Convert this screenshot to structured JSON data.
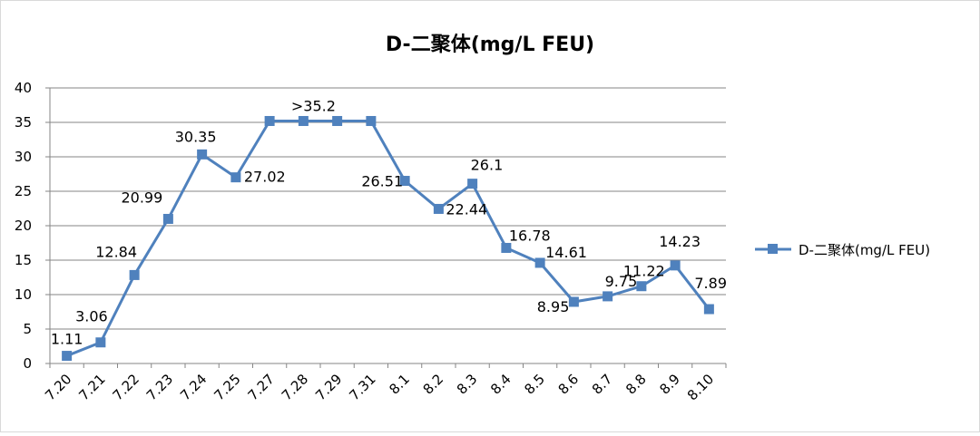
{
  "chart_data": {
    "type": "line",
    "title": "D-二聚体(mg/L FEU)",
    "xlabel": "",
    "ylabel": "",
    "categories": [
      "7.20",
      "7.21",
      "7.22",
      "7.23",
      "7.24",
      "7.25",
      "7.27",
      "7.28",
      "7.29",
      "7.31",
      "8.1",
      "8.2",
      "8.3",
      "8.4",
      "8.5",
      "8.6",
      "8.7",
      "8.8",
      "8.9",
      "8.10"
    ],
    "series": [
      {
        "name": "D-二聚体(mg/L FEU)",
        "values": [
          1.11,
          3.06,
          12.84,
          20.99,
          30.35,
          27.02,
          35.2,
          35.2,
          35.2,
          35.2,
          26.51,
          22.44,
          26.1,
          16.78,
          14.61,
          8.95,
          9.75,
          11.22,
          14.23,
          7.89
        ],
        "labels": [
          "1.11",
          "3.06",
          "12.84",
          "20.99",
          "30.35",
          "27.02",
          "",
          ">35.2",
          "",
          "",
          "26.51",
          "22.44",
          "26.1",
          "16.78",
          "14.61",
          "8.95",
          "9.75",
          "11.22",
          "14.23",
          "7.89"
        ]
      }
    ],
    "ylim": [
      0,
      40
    ],
    "yticks": [
      0,
      5,
      10,
      15,
      20,
      25,
      30,
      35,
      40
    ],
    "grid": true,
    "legend_position": "right",
    "colors": {
      "series": "#4F81BD",
      "grid": "#868686",
      "axis": "#868686",
      "text": "#000000"
    }
  }
}
